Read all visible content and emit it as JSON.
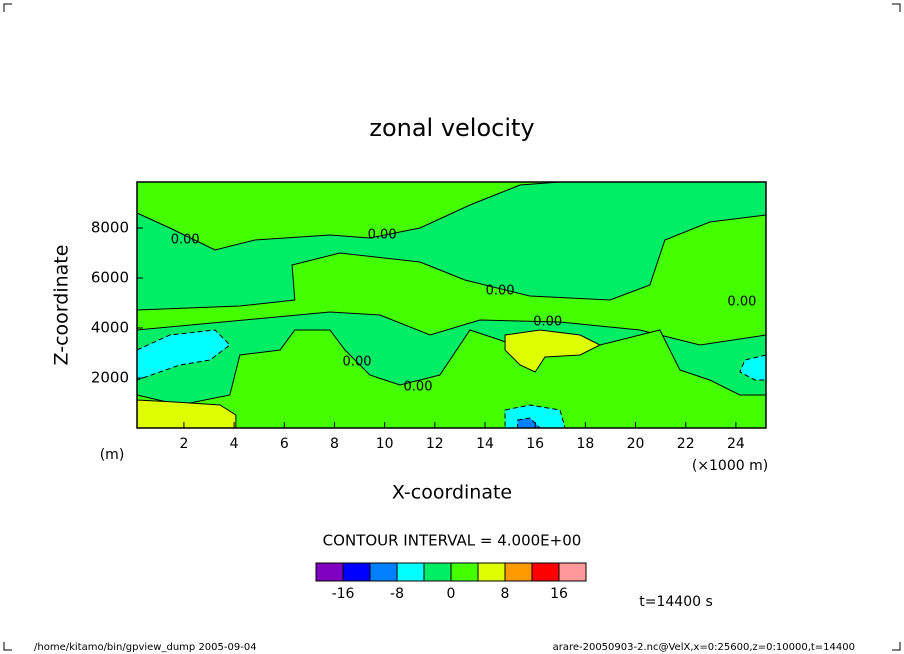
{
  "chart_data": {
    "type": "contour",
    "title": "zonal velocity",
    "xlabel": "X-coordinate",
    "xunit": "(×1000 m)",
    "ylabel": "Z-coordinate",
    "yunit": "(m)",
    "xlim": [
      0.13,
      25.2
    ],
    "xticks": [
      2,
      4,
      6,
      8,
      10,
      12,
      14,
      16,
      18,
      20,
      22,
      24
    ],
    "ylim": [
      0,
      9840
    ],
    "yticks": [
      2000,
      4000,
      6000,
      8000
    ],
    "levels": [
      -20,
      -16,
      -12,
      -8,
      -4,
      0,
      4,
      8,
      12,
      16,
      20
    ],
    "colors": [
      "#7f00c0",
      "#0000ff",
      "#0080ff",
      "#00ffff",
      "#00ee66",
      "#44ff00",
      "#ddff00",
      "#ff9900",
      "#ff0000",
      "#ff9999"
    ],
    "background_level": 4,
    "colorbar_ticks": [
      -16,
      -8,
      0,
      8,
      16
    ],
    "regions": [
      {
        "level": 5,
        "points": [
          [
            0.13,
            9840
          ],
          [
            0.13,
            8600
          ],
          [
            1.44,
            8000
          ],
          [
            3.24,
            7120
          ],
          [
            4.83,
            7520
          ],
          [
            7.82,
            7720
          ],
          [
            9.41,
            7600
          ],
          [
            11.41,
            8000
          ],
          [
            13.4,
            8920
          ],
          [
            15.4,
            9720
          ],
          [
            16.99,
            9840
          ]
        ]
      },
      {
        "level": 5,
        "points": [
          [
            0.13,
            4720
          ],
          [
            4.23,
            4880
          ],
          [
            6.42,
            5120
          ],
          [
            6.31,
            6520
          ],
          [
            8.22,
            7000
          ],
          [
            11.41,
            6640
          ],
          [
            13.2,
            5920
          ],
          [
            15.79,
            5280
          ],
          [
            18.98,
            5120
          ],
          [
            20.57,
            5720
          ],
          [
            21.17,
            7520
          ],
          [
            22.96,
            8240
          ],
          [
            25.2,
            8520
          ],
          [
            25.2,
            3720
          ],
          [
            22.57,
            3320
          ],
          [
            20.17,
            3920
          ],
          [
            16.99,
            4240
          ],
          [
            13.8,
            4320
          ],
          [
            11.81,
            3720
          ],
          [
            9.81,
            4520
          ],
          [
            7.82,
            4640
          ],
          [
            0.13,
            3920
          ]
        ]
      },
      {
        "level": 5,
        "points": [
          [
            0.13,
            1320
          ],
          [
            1.84,
            920
          ],
          [
            3.83,
            1320
          ],
          [
            4.23,
            2920
          ],
          [
            5.83,
            3120
          ],
          [
            6.42,
            3920
          ],
          [
            7.82,
            3920
          ],
          [
            8.42,
            3120
          ],
          [
            9.41,
            2120
          ],
          [
            10.61,
            1720
          ],
          [
            12.2,
            2120
          ],
          [
            13.4,
            3920
          ],
          [
            14.6,
            3520
          ],
          [
            16.19,
            2920
          ],
          [
            18.58,
            3320
          ],
          [
            20.97,
            3920
          ],
          [
            21.77,
            2320
          ],
          [
            22.96,
            1920
          ],
          [
            24.16,
            1320
          ],
          [
            25.2,
            1320
          ],
          [
            25.2,
            0
          ],
          [
            0.13,
            0
          ]
        ]
      },
      {
        "level": 6,
        "points": [
          [
            0.13,
            1120
          ],
          [
            1.64,
            1040
          ],
          [
            3.44,
            920
          ],
          [
            4.07,
            520
          ],
          [
            4.07,
            0
          ],
          [
            0.13,
            0
          ]
        ]
      },
      {
        "level": 6,
        "points": [
          [
            14.8,
            3720
          ],
          [
            16.19,
            3920
          ],
          [
            17.79,
            3720
          ],
          [
            18.58,
            3320
          ],
          [
            17.79,
            2920
          ],
          [
            16.39,
            2840
          ],
          [
            16.0,
            2240
          ],
          [
            15.4,
            2520
          ],
          [
            14.8,
            3120
          ]
        ]
      },
      {
        "level": 3,
        "points": [
          [
            0.13,
            3120
          ],
          [
            1.44,
            3720
          ],
          [
            3.24,
            3920
          ],
          [
            3.83,
            3320
          ],
          [
            3.04,
            2720
          ],
          [
            1.84,
            2520
          ],
          [
            0.13,
            1920
          ]
        ]
      },
      {
        "level": 3,
        "points": [
          [
            14.8,
            720
          ],
          [
            15.79,
            920
          ],
          [
            16.99,
            720
          ],
          [
            17.19,
            0
          ],
          [
            14.8,
            0
          ]
        ]
      },
      {
        "level": 3,
        "points": [
          [
            25.2,
            2920
          ],
          [
            24.36,
            2720
          ],
          [
            24.16,
            2240
          ],
          [
            24.76,
            1920
          ],
          [
            25.2,
            1920
          ]
        ]
      },
      {
        "level": 2,
        "points": [
          [
            15.3,
            320
          ],
          [
            15.79,
            400
          ],
          [
            16.19,
            0
          ],
          [
            15.3,
            0
          ]
        ]
      }
    ],
    "contour_labels": [
      {
        "label": "0.00",
        "x": 2.05,
        "z": 7520
      },
      {
        "label": "0.00",
        "x": 9.9,
        "z": 7720
      },
      {
        "label": "0.00",
        "x": 14.6,
        "z": 5480
      },
      {
        "label": "0.00",
        "x": 16.5,
        "z": 4240
      },
      {
        "label": "0.00",
        "x": 24.24,
        "z": 5040
      },
      {
        "label": "0.00",
        "x": 8.9,
        "z": 2640
      },
      {
        "label": "0.00",
        "x": 11.33,
        "z": 1640
      }
    ],
    "contour_interval": "CONTOUR INTERVAL = 4.000E+00",
    "time_label": "t=14400 s",
    "footer_left": "/home/kitamo/bin/gpview_dump  2005-09-04",
    "footer_right": "arare-20050903-2.nc@VelX,x=0:25600,z=0:10000,t=14400"
  }
}
